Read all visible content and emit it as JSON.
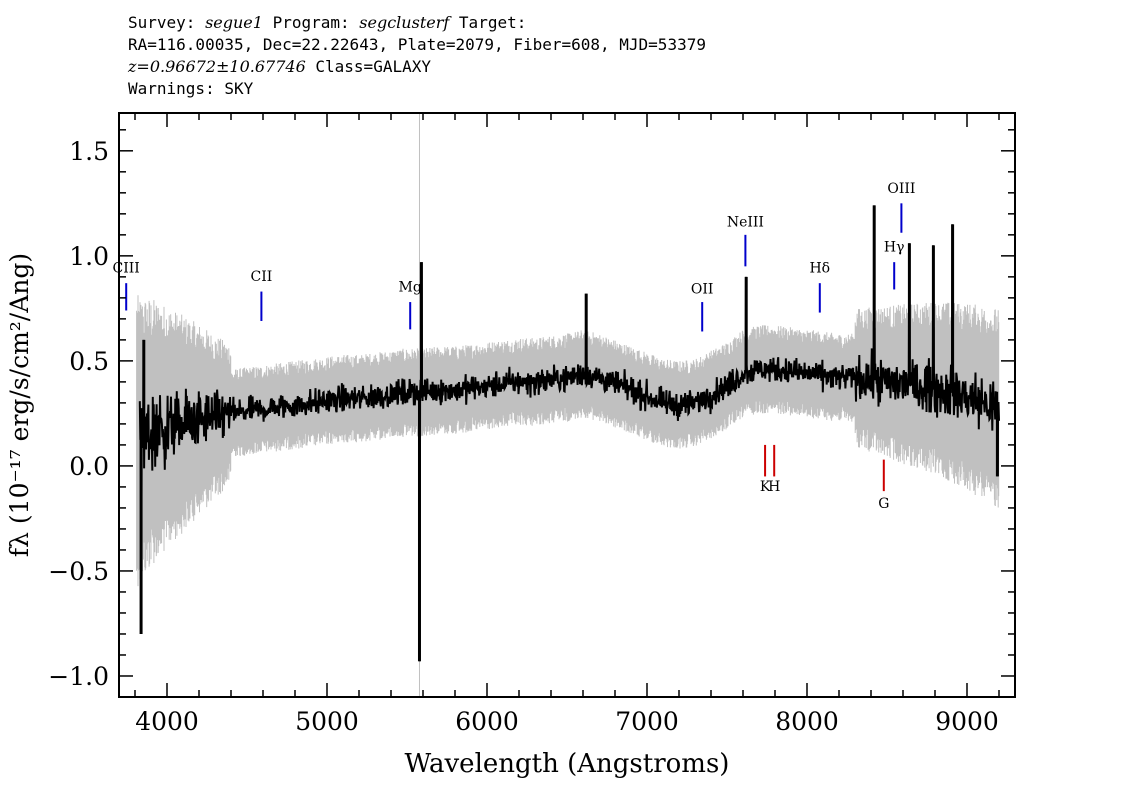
{
  "header": {
    "line1": {
      "survey_label": "Survey:",
      "survey": "segue1",
      "program_label": "Program:",
      "program": "segclusterf",
      "target_label": "Target:"
    },
    "line2": "RA=116.00035, Dec=22.22643, Plate=2079, Fiber=608, MJD=53379",
    "line3": {
      "redshift": "z=0.96672±10.67746",
      "class_label": "Class=GALAXY"
    },
    "line4": "Warnings: SKY"
  },
  "chart_data": {
    "type": "line",
    "xlabel": "Wavelength (Angstroms)",
    "ylabel": "fλ (10⁻¹⁷ erg/s/cm²/Ang)",
    "xlim": [
      3700,
      9300
    ],
    "ylim": [
      -1.1,
      1.68
    ],
    "xticks": [
      4000,
      5000,
      6000,
      7000,
      8000,
      9000
    ],
    "yticks": [
      -1.0,
      -0.5,
      0.0,
      0.5,
      1.0,
      1.5
    ],
    "ytick_labels": [
      "−1.0",
      "−0.5",
      "0.0",
      "0.5",
      "1.0",
      "1.5"
    ],
    "series": [
      {
        "role": "flux",
        "color": "#000000",
        "x": [
          3830,
          3900,
          4000,
          4100,
          4200,
          4300,
          4400,
          4500,
          4600,
          4700,
          4800,
          4900,
          5000,
          5100,
          5200,
          5300,
          5400,
          5500,
          5600,
          5700,
          5800,
          5900,
          6000,
          6100,
          6200,
          6300,
          6400,
          6500,
          6600,
          6700,
          6800,
          6900,
          7000,
          7100,
          7200,
          7300,
          7400,
          7500,
          7600,
          7700,
          7800,
          7900,
          8000,
          8100,
          8200,
          8300,
          8400,
          8500,
          8600,
          8700,
          8800,
          8900,
          9000,
          9100,
          9200
        ],
        "y": [
          0.12,
          0.16,
          0.18,
          0.2,
          0.22,
          0.23,
          0.25,
          0.26,
          0.27,
          0.28,
          0.29,
          0.3,
          0.31,
          0.32,
          0.32,
          0.33,
          0.34,
          0.35,
          0.35,
          0.36,
          0.36,
          0.37,
          0.38,
          0.39,
          0.4,
          0.4,
          0.41,
          0.42,
          0.44,
          0.42,
          0.39,
          0.36,
          0.33,
          0.3,
          0.29,
          0.3,
          0.34,
          0.38,
          0.44,
          0.46,
          0.46,
          0.45,
          0.44,
          0.43,
          0.42,
          0.42,
          0.41,
          0.4,
          0.39,
          0.38,
          0.37,
          0.35,
          0.33,
          0.3,
          0.27
        ]
      }
    ],
    "flux_spikes": [
      {
        "x": 5578,
        "y": -0.93
      },
      {
        "x": 5590,
        "y": 0.97
      },
      {
        "x": 3838,
        "y": -0.8
      },
      {
        "x": 3855,
        "y": 0.6
      },
      {
        "x": 6620,
        "y": 0.82
      },
      {
        "x": 7620,
        "y": 0.9
      },
      {
        "x": 8420,
        "y": 1.24
      },
      {
        "x": 8640,
        "y": 1.06
      },
      {
        "x": 8790,
        "y": 1.05
      },
      {
        "x": 8910,
        "y": 1.15
      },
      {
        "x": 9190,
        "y": -0.05
      }
    ],
    "error_color": "#c0c0c0",
    "emission_lines": [
      {
        "label": "CIII",
        "x": 3745,
        "y0": 0.74,
        "y1": 0.87,
        "label_y": 0.92,
        "color": "#0000cc"
      },
      {
        "label": "CII",
        "x": 4590,
        "y0": 0.69,
        "y1": 0.83,
        "label_y": 0.88,
        "color": "#0000cc"
      },
      {
        "label": "Mg",
        "x": 5520,
        "y0": 0.65,
        "y1": 0.78,
        "label_y": 0.83,
        "color": "#0000cc"
      },
      {
        "label": "OII",
        "x": 7345,
        "y0": 0.64,
        "y1": 0.78,
        "label_y": 0.82,
        "color": "#0000cc"
      },
      {
        "label": "NeIII",
        "x": 7615,
        "y0": 0.95,
        "y1": 1.1,
        "label_y": 1.14,
        "color": "#0000cc"
      },
      {
        "label": "Hδ",
        "x": 8080,
        "y0": 0.73,
        "y1": 0.87,
        "label_y": 0.92,
        "color": "#0000cc"
      },
      {
        "label": "Hγ",
        "x": 8545,
        "y0": 0.84,
        "y1": 0.97,
        "label_y": 1.02,
        "color": "#0000cc"
      },
      {
        "label": "OIII",
        "x": 8590,
        "y0": 1.11,
        "y1": 1.25,
        "label_y": 1.3,
        "color": "#0000cc"
      }
    ],
    "absorption_lines": [
      {
        "label": "K",
        "x": 7738,
        "y0": 0.1,
        "y1": -0.05,
        "label_y": -0.12,
        "color": "#cc0000"
      },
      {
        "label": "H",
        "x": 7795,
        "y0": 0.1,
        "y1": -0.05,
        "label_y": -0.12,
        "color": "#cc0000"
      },
      {
        "label": "G",
        "x": 8480,
        "y0": 0.03,
        "y1": -0.12,
        "label_y": -0.2,
        "color": "#cc0000"
      }
    ]
  }
}
